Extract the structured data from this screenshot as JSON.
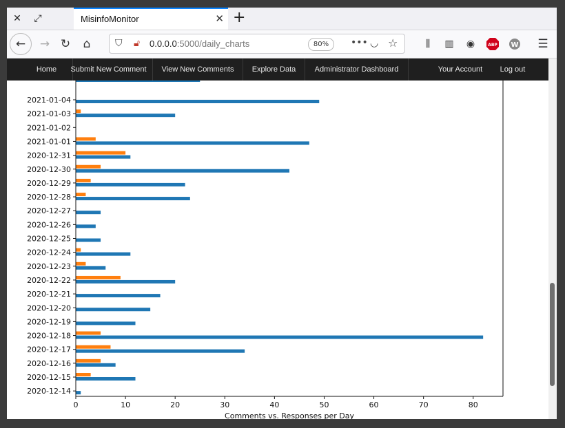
{
  "browser": {
    "tab_title": "MisinfoMonitor",
    "url_host": "0.0.0.0",
    "url_rest": ":5000/daily_charts",
    "zoom": "80%"
  },
  "site_nav": {
    "items": [
      "Home",
      "Submit New Comment",
      "View New Comments",
      "Explore Data",
      "Administrator Dashboard"
    ],
    "right_items": [
      "Your Account",
      "Log out"
    ]
  },
  "colors": {
    "comments": "#1f77b4",
    "responses": "#ff7f0e",
    "nav_bg": "#1f1f1f"
  },
  "chart_data": {
    "type": "bar",
    "orientation": "horizontal",
    "xlabel": "Comments vs. Responses per Day",
    "xlim": [
      0,
      86
    ],
    "xticks": [
      0,
      10,
      20,
      30,
      40,
      50,
      60,
      70,
      80
    ],
    "categories": [
      "2021-01-04",
      "2021-01-03",
      "2021-01-02",
      "2021-01-01",
      "2020-12-31",
      "2020-12-30",
      "2020-12-29",
      "2020-12-28",
      "2020-12-27",
      "2020-12-26",
      "2020-12-25",
      "2020-12-24",
      "2020-12-23",
      "2020-12-22",
      "2020-12-21",
      "2020-12-20",
      "2020-12-19",
      "2020-12-18",
      "2020-12-17",
      "2020-12-16",
      "2020-12-15",
      "2020-12-14"
    ],
    "series": [
      {
        "values": [
          49,
          20,
          0,
          47,
          11,
          43,
          22,
          23,
          5,
          4,
          5,
          11,
          6,
          20,
          17,
          15,
          12,
          82,
          34,
          8,
          12,
          1
        ]
      },
      {
        "values": [
          0,
          1,
          0,
          4,
          10,
          5,
          3,
          2,
          0,
          0,
          0,
          1,
          2,
          9,
          0,
          0,
          0,
          5,
          7,
          5,
          3,
          0
        ]
      }
    ],
    "clipped_top_bar": 25
  }
}
